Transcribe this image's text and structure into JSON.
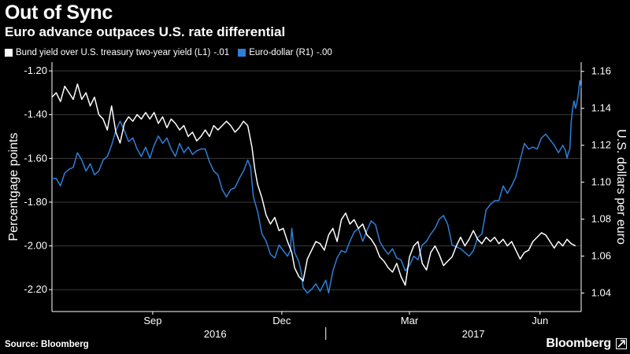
{
  "title": "Out of Sync",
  "subtitle": "Euro advance outpaces U.S. rate differential",
  "source": "Source: Bloomberg",
  "brand": "Bloomberg",
  "brand_icon": "expand-icon",
  "colors": {
    "bund_series": "#ffffff",
    "euro_series": "#2f7ed8",
    "grid": "#3a3a3a",
    "background": "#000000"
  },
  "chart_data": {
    "type": "line",
    "xlabel": "",
    "ylabel_left": "Percentgage points",
    "ylabel_right": "U.S. dollars per euro",
    "ylim_left": [
      -2.3,
      -1.16
    ],
    "ylim_right": [
      1.03,
      1.165
    ],
    "yticks_left": [
      -1.2,
      -1.4,
      -1.6,
      -1.8,
      -2.0,
      -2.2
    ],
    "yticks_left_labels": [
      "-1.20",
      "-1.40",
      "-1.60",
      "-1.80",
      "-2.00",
      "-2.20"
    ],
    "yticks_right": [
      1.16,
      1.14,
      1.12,
      1.1,
      1.08,
      1.06,
      1.04
    ],
    "yticks_right_labels": [
      "1.16",
      "1.14",
      "1.12",
      "1.10",
      "1.08",
      "1.06",
      "1.04"
    ],
    "x_month_ticks": [
      {
        "label": "Sep",
        "date": "2016-09-01"
      },
      {
        "label": "Dec",
        "date": "2016-12-01"
      },
      {
        "label": "Mar",
        "date": "2017-03-01"
      },
      {
        "label": "Jun",
        "date": "2017-06-01"
      }
    ],
    "x_year_labels": [
      {
        "label": "2016",
        "date": "2016-10-15"
      },
      {
        "label": "2017",
        "date": "2017-04-15"
      }
    ],
    "x_year_divider": "2017-01-01",
    "xlim": [
      "2016-06-22",
      "2017-06-30"
    ],
    "grid": true,
    "legend_position": "top-left",
    "series": [
      {
        "name": "Bund yield over U.S. treasury two-year yield (L1)",
        "legend_suffix": "-.01",
        "axis": "left",
        "points": [
          [
            "2016-06-22",
            -1.32
          ],
          [
            "2016-06-25",
            -1.3
          ],
          [
            "2016-06-28",
            -1.34
          ],
          [
            "2016-07-01",
            -1.27
          ],
          [
            "2016-07-04",
            -1.3
          ],
          [
            "2016-07-07",
            -1.33
          ],
          [
            "2016-07-10",
            -1.26
          ],
          [
            "2016-07-13",
            -1.33
          ],
          [
            "2016-07-16",
            -1.3
          ],
          [
            "2016-07-19",
            -1.36
          ],
          [
            "2016-07-22",
            -1.32
          ],
          [
            "2016-07-25",
            -1.4
          ],
          [
            "2016-07-28",
            -1.42
          ],
          [
            "2016-07-31",
            -1.47
          ],
          [
            "2016-08-03",
            -1.36
          ],
          [
            "2016-08-06",
            -1.48
          ],
          [
            "2016-08-09",
            -1.53
          ],
          [
            "2016-08-12",
            -1.44
          ],
          [
            "2016-08-15",
            -1.41
          ],
          [
            "2016-08-18",
            -1.43
          ],
          [
            "2016-08-21",
            -1.4
          ],
          [
            "2016-08-24",
            -1.42
          ],
          [
            "2016-08-27",
            -1.39
          ],
          [
            "2016-08-30",
            -1.42
          ],
          [
            "2016-09-02",
            -1.39
          ],
          [
            "2016-09-05",
            -1.44
          ],
          [
            "2016-09-08",
            -1.41
          ],
          [
            "2016-09-11",
            -1.46
          ],
          [
            "2016-09-14",
            -1.42
          ],
          [
            "2016-09-17",
            -1.44
          ],
          [
            "2016-09-20",
            -1.47
          ],
          [
            "2016-09-23",
            -1.45
          ],
          [
            "2016-09-26",
            -1.5
          ],
          [
            "2016-09-29",
            -1.48
          ],
          [
            "2016-10-02",
            -1.52
          ],
          [
            "2016-10-05",
            -1.5
          ],
          [
            "2016-10-08",
            -1.47
          ],
          [
            "2016-10-11",
            -1.5
          ],
          [
            "2016-10-14",
            -1.45
          ],
          [
            "2016-10-17",
            -1.47
          ],
          [
            "2016-10-20",
            -1.45
          ],
          [
            "2016-10-23",
            -1.43
          ],
          [
            "2016-10-26",
            -1.45
          ],
          [
            "2016-10-29",
            -1.48
          ],
          [
            "2016-11-01",
            -1.46
          ],
          [
            "2016-11-04",
            -1.43
          ],
          [
            "2016-11-07",
            -1.45
          ],
          [
            "2016-11-10",
            -1.55
          ],
          [
            "2016-11-12",
            -1.65
          ],
          [
            "2016-11-14",
            -1.72
          ],
          [
            "2016-11-17",
            -1.78
          ],
          [
            "2016-11-20",
            -1.86
          ],
          [
            "2016-11-23",
            -1.9
          ],
          [
            "2016-11-26",
            -1.87
          ],
          [
            "2016-11-29",
            -1.93
          ],
          [
            "2016-12-02",
            -1.92
          ],
          [
            "2016-12-05",
            -1.98
          ],
          [
            "2016-12-08",
            -2.03
          ],
          [
            "2016-12-10",
            -2.1
          ],
          [
            "2016-12-13",
            -2.14
          ],
          [
            "2016-12-16",
            -2.16
          ],
          [
            "2016-12-19",
            -2.06
          ],
          [
            "2016-12-22",
            -2.02
          ],
          [
            "2016-12-25",
            -1.98
          ],
          [
            "2016-12-28",
            -1.99
          ],
          [
            "2016-12-31",
            -2.02
          ],
          [
            "2017-01-03",
            -1.95
          ],
          [
            "2017-01-06",
            -1.92
          ],
          [
            "2017-01-09",
            -1.98
          ],
          [
            "2017-01-12",
            -1.88
          ],
          [
            "2017-01-15",
            -1.85
          ],
          [
            "2017-01-18",
            -1.9
          ],
          [
            "2017-01-21",
            -1.88
          ],
          [
            "2017-01-24",
            -1.92
          ],
          [
            "2017-01-27",
            -1.9
          ],
          [
            "2017-01-30",
            -1.95
          ],
          [
            "2017-02-02",
            -1.97
          ],
          [
            "2017-02-05",
            -2.0
          ],
          [
            "2017-02-08",
            -2.05
          ],
          [
            "2017-02-11",
            -2.07
          ],
          [
            "2017-02-14",
            -2.1
          ],
          [
            "2017-02-17",
            -2.12
          ],
          [
            "2017-02-20",
            -2.08
          ],
          [
            "2017-02-23",
            -2.14
          ],
          [
            "2017-02-26",
            -2.18
          ],
          [
            "2017-03-01",
            -2.05
          ],
          [
            "2017-03-04",
            -2.0
          ],
          [
            "2017-03-07",
            -1.98
          ],
          [
            "2017-03-10",
            -2.08
          ],
          [
            "2017-03-13",
            -2.11
          ],
          [
            "2017-03-16",
            -2.03
          ],
          [
            "2017-03-19",
            -2.0
          ],
          [
            "2017-03-22",
            -2.04
          ],
          [
            "2017-03-25",
            -2.09
          ],
          [
            "2017-03-28",
            -2.07
          ],
          [
            "2017-03-31",
            -2.05
          ],
          [
            "2017-04-03",
            -2.0
          ],
          [
            "2017-04-06",
            -1.96
          ],
          [
            "2017-04-09",
            -2.0
          ],
          [
            "2017-04-12",
            -1.97
          ],
          [
            "2017-04-15",
            -1.93
          ],
          [
            "2017-04-18",
            -1.97
          ],
          [
            "2017-04-21",
            -1.99
          ],
          [
            "2017-04-24",
            -1.96
          ],
          [
            "2017-04-27",
            -1.98
          ],
          [
            "2017-04-30",
            -1.96
          ],
          [
            "2017-05-03",
            -1.99
          ],
          [
            "2017-05-06",
            -1.97
          ],
          [
            "2017-05-09",
            -2.0
          ],
          [
            "2017-05-12",
            -1.98
          ],
          [
            "2017-05-15",
            -2.02
          ],
          [
            "2017-05-18",
            -2.06
          ],
          [
            "2017-05-21",
            -2.03
          ],
          [
            "2017-05-24",
            -2.02
          ],
          [
            "2017-05-27",
            -1.98
          ],
          [
            "2017-05-30",
            -1.96
          ],
          [
            "2017-06-02",
            -1.94
          ],
          [
            "2017-06-05",
            -1.95
          ],
          [
            "2017-06-08",
            -1.98
          ],
          [
            "2017-06-11",
            -2.01
          ],
          [
            "2017-06-14",
            -1.98
          ],
          [
            "2017-06-17",
            -2.0
          ],
          [
            "2017-06-20",
            -1.97
          ],
          [
            "2017-06-23",
            -1.99
          ],
          [
            "2017-06-26",
            -2.0
          ]
        ]
      },
      {
        "name": "Euro-dollar (R1)",
        "legend_suffix": "-.00",
        "axis": "right",
        "points": [
          [
            "2016-06-22",
            1.102
          ],
          [
            "2016-06-25",
            1.102
          ],
          [
            "2016-06-28",
            1.098
          ],
          [
            "2016-07-01",
            1.105
          ],
          [
            "2016-07-04",
            1.107
          ],
          [
            "2016-07-07",
            1.108
          ],
          [
            "2016-07-10",
            1.116
          ],
          [
            "2016-07-13",
            1.112
          ],
          [
            "2016-07-16",
            1.106
          ],
          [
            "2016-07-19",
            1.11
          ],
          [
            "2016-07-22",
            1.104
          ],
          [
            "2016-07-25",
            1.106
          ],
          [
            "2016-07-28",
            1.112
          ],
          [
            "2016-07-31",
            1.114
          ],
          [
            "2016-08-03",
            1.12
          ],
          [
            "2016-08-06",
            1.128
          ],
          [
            "2016-08-09",
            1.133
          ],
          [
            "2016-08-12",
            1.128
          ],
          [
            "2016-08-15",
            1.122
          ],
          [
            "2016-08-18",
            1.124
          ],
          [
            "2016-08-21",
            1.118
          ],
          [
            "2016-08-24",
            1.114
          ],
          [
            "2016-08-27",
            1.119
          ],
          [
            "2016-08-30",
            1.113
          ],
          [
            "2016-09-02",
            1.12
          ],
          [
            "2016-09-05",
            1.125
          ],
          [
            "2016-09-08",
            1.121
          ],
          [
            "2016-09-11",
            1.124
          ],
          [
            "2016-09-14",
            1.118
          ],
          [
            "2016-09-17",
            1.114
          ],
          [
            "2016-09-20",
            1.121
          ],
          [
            "2016-09-23",
            1.116
          ],
          [
            "2016-09-26",
            1.119
          ],
          [
            "2016-09-29",
            1.115
          ],
          [
            "2016-10-02",
            1.117
          ],
          [
            "2016-10-05",
            1.118
          ],
          [
            "2016-10-08",
            1.118
          ],
          [
            "2016-10-11",
            1.111
          ],
          [
            "2016-10-14",
            1.106
          ],
          [
            "2016-10-17",
            1.104
          ],
          [
            "2016-10-20",
            1.096
          ],
          [
            "2016-10-23",
            1.092
          ],
          [
            "2016-10-26",
            1.096
          ],
          [
            "2016-10-29",
            1.097
          ],
          [
            "2016-11-01",
            1.102
          ],
          [
            "2016-11-04",
            1.106
          ],
          [
            "2016-11-07",
            1.112
          ],
          [
            "2016-11-09",
            1.108
          ],
          [
            "2016-11-11",
            1.092
          ],
          [
            "2016-11-14",
            1.084
          ],
          [
            "2016-11-17",
            1.072
          ],
          [
            "2016-11-20",
            1.068
          ],
          [
            "2016-11-23",
            1.061
          ],
          [
            "2016-11-26",
            1.059
          ],
          [
            "2016-11-29",
            1.066
          ],
          [
            "2016-12-02",
            1.063
          ],
          [
            "2016-12-05",
            1.06
          ],
          [
            "2016-12-07",
            1.063
          ],
          [
            "2016-12-08",
            1.075
          ],
          [
            "2016-12-10",
            1.062
          ],
          [
            "2016-12-13",
            1.057
          ],
          [
            "2016-12-15",
            1.05
          ],
          [
            "2016-12-16",
            1.043
          ],
          [
            "2016-12-19",
            1.04
          ],
          [
            "2016-12-22",
            1.042
          ],
          [
            "2016-12-25",
            1.045
          ],
          [
            "2016-12-28",
            1.041
          ],
          [
            "2017-01-01",
            1.047
          ],
          [
            "2017-01-03",
            1.04
          ],
          [
            "2017-01-06",
            1.052
          ],
          [
            "2017-01-09",
            1.059
          ],
          [
            "2017-01-12",
            1.063
          ],
          [
            "2017-01-15",
            1.062
          ],
          [
            "2017-01-18",
            1.068
          ],
          [
            "2017-01-21",
            1.073
          ],
          [
            "2017-01-24",
            1.075
          ],
          [
            "2017-01-27",
            1.068
          ],
          [
            "2017-01-30",
            1.074
          ],
          [
            "2017-02-02",
            1.079
          ],
          [
            "2017-02-05",
            1.077
          ],
          [
            "2017-02-08",
            1.068
          ],
          [
            "2017-02-11",
            1.064
          ],
          [
            "2017-02-14",
            1.061
          ],
          [
            "2017-02-17",
            1.064
          ],
          [
            "2017-02-20",
            1.059
          ],
          [
            "2017-02-23",
            1.058
          ],
          [
            "2017-02-26",
            1.052
          ],
          [
            "2017-03-01",
            1.055
          ],
          [
            "2017-03-04",
            1.06
          ],
          [
            "2017-03-07",
            1.058
          ],
          [
            "2017-03-10",
            1.066
          ],
          [
            "2017-03-13",
            1.068
          ],
          [
            "2017-03-16",
            1.072
          ],
          [
            "2017-03-19",
            1.075
          ],
          [
            "2017-03-22",
            1.08
          ],
          [
            "2017-03-25",
            1.082
          ],
          [
            "2017-03-28",
            1.077
          ],
          [
            "2017-03-31",
            1.066
          ],
          [
            "2017-04-03",
            1.065
          ],
          [
            "2017-04-06",
            1.064
          ],
          [
            "2017-04-09",
            1.062
          ],
          [
            "2017-04-12",
            1.06
          ],
          [
            "2017-04-15",
            1.063
          ],
          [
            "2017-04-18",
            1.07
          ],
          [
            "2017-04-21",
            1.072
          ],
          [
            "2017-04-24",
            1.085
          ],
          [
            "2017-04-27",
            1.088
          ],
          [
            "2017-04-30",
            1.09
          ],
          [
            "2017-05-03",
            1.09
          ],
          [
            "2017-05-06",
            1.098
          ],
          [
            "2017-05-09",
            1.094
          ],
          [
            "2017-05-12",
            1.098
          ],
          [
            "2017-05-15",
            1.103
          ],
          [
            "2017-05-18",
            1.112
          ],
          [
            "2017-05-21",
            1.121
          ],
          [
            "2017-05-24",
            1.118
          ],
          [
            "2017-05-27",
            1.119
          ],
          [
            "2017-05-30",
            1.118
          ],
          [
            "2017-06-02",
            1.124
          ],
          [
            "2017-06-05",
            1.126
          ],
          [
            "2017-06-08",
            1.123
          ],
          [
            "2017-06-11",
            1.12
          ],
          [
            "2017-06-14",
            1.116
          ],
          [
            "2017-06-17",
            1.12
          ],
          [
            "2017-06-19",
            1.117
          ],
          [
            "2017-06-20",
            1.113
          ],
          [
            "2017-06-21",
            1.116
          ],
          [
            "2017-06-22",
            1.118
          ],
          [
            "2017-06-23",
            1.133
          ],
          [
            "2017-06-24",
            1.14
          ],
          [
            "2017-06-25",
            1.144
          ],
          [
            "2017-06-26",
            1.14
          ],
          [
            "2017-06-27",
            1.143
          ],
          [
            "2017-06-28",
            1.148
          ],
          [
            "2017-06-29",
            1.155
          ],
          [
            "2017-06-30",
            1.151
          ]
        ]
      }
    ]
  }
}
